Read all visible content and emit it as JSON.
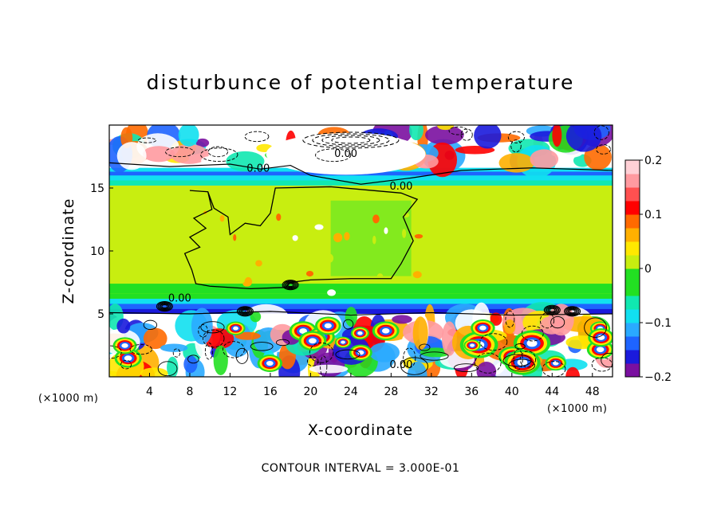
{
  "chart_data": {
    "type": "heatmap",
    "title": "disturbunce of potential temperature",
    "xlabel": "X-coordinate",
    "ylabel": "Z-coordinate",
    "x_unit": "(×1000 m)",
    "z_unit": "(×1000 m)",
    "xlim": [
      0,
      50
    ],
    "ylim": [
      0,
      20
    ],
    "x_ticks": [
      4,
      8,
      12,
      16,
      20,
      24,
      28,
      32,
      36,
      40,
      44,
      48
    ],
    "y_ticks": [
      5,
      10,
      15
    ],
    "colorbar": {
      "vmin": -0.2,
      "vmax": 0.2,
      "ticks": [
        {
          "value": 0.2,
          "label": "0.2"
        },
        {
          "value": 0.1,
          "label": "0.1"
        },
        {
          "value": 0.0,
          "label": "0"
        },
        {
          "value": -0.1,
          "label": "−0.1"
        },
        {
          "value": -0.2,
          "label": "−0.2"
        }
      ],
      "colors": [
        "#7a0fa0",
        "#1a1adc",
        "#1e64ff",
        "#2aaaff",
        "#11e0f0",
        "#10e8b0",
        "#22e022",
        "#22e022",
        "#c8ee10",
        "#ffe800",
        "#ffb000",
        "#ff6a00",
        "#ff0000",
        "#ff5050",
        "#ff9aa0",
        "#ffd0d6"
      ]
    },
    "layers": [
      {
        "z_from": 0.0,
        "z_to": 5.0,
        "description_value": "mixed",
        "color_key": "turbulent"
      },
      {
        "z_from": 5.0,
        "z_to": 6.5,
        "value": -0.1
      },
      {
        "z_from": 6.5,
        "z_to": 15.2,
        "value": 0.0
      },
      {
        "z_from": 15.2,
        "z_to": 16.6,
        "value": -0.12
      },
      {
        "z_from": 16.6,
        "z_to": 20.0,
        "description_value": "mixed",
        "color_key": "turbulent"
      }
    ],
    "contour_labels": [
      {
        "text": "0.00",
        "x": 23.5,
        "z": 17.8
      },
      {
        "text": "0.00",
        "x": 14.8,
        "z": 16.6
      },
      {
        "text": "0.00",
        "x": 29.0,
        "z": 15.2
      },
      {
        "text": "0.00",
        "x": 7.0,
        "z": 6.3
      },
      {
        "text": "0.00",
        "x": 29.0,
        "z": 1.0
      }
    ],
    "footer": "CONTOUR INTERVAL = 3.000E-01"
  }
}
